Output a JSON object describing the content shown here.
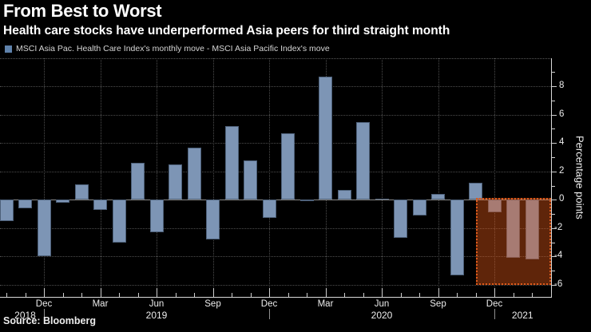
{
  "header": {
    "title": "From Best to Worst",
    "subtitle": "Health care stocks have underperformed Asia peers for third straight month"
  },
  "legend": {
    "swatch_color": "#5f82ab",
    "label": "MSCI Asia Pac. Health Care Index's monthly move - MSCI Asia Pacific Index's move"
  },
  "footer": {
    "source": "Source: Bloomberg"
  },
  "chart_data": {
    "type": "bar",
    "title": "From Best to Worst",
    "ylabel": "Percentage points",
    "ylim": [
      -6.84,
      9.97
    ],
    "y_ticks": [
      8,
      6,
      4,
      2,
      0,
      -2,
      -4,
      -6
    ],
    "y_minor_ticks": [
      9,
      7,
      5,
      3,
      1,
      -1,
      -3,
      -5
    ],
    "grid": true,
    "bar_color": "#7d95b5",
    "x": [
      "Oct 2018",
      "Nov 2018",
      "Dec 2018",
      "Jan 2019",
      "Feb 2019",
      "Mar 2019",
      "Apr 2019",
      "May 2019",
      "Jun 2019",
      "Jul 2019",
      "Aug 2019",
      "Sep 2019",
      "Oct 2019",
      "Nov 2019",
      "Dec 2019",
      "Jan 2020",
      "Feb 2020",
      "Mar 2020",
      "Apr 2020",
      "May 2020",
      "Jun 2020",
      "Jul 2020",
      "Aug 2020",
      "Sep 2020",
      "Oct 2020",
      "Nov 2020",
      "Dec 2020",
      "Jan 2021",
      "Feb 2021"
    ],
    "values": [
      -1.5,
      -0.6,
      -4.0,
      -0.2,
      1.1,
      -0.7,
      -3.0,
      2.6,
      -2.3,
      2.5,
      3.7,
      -2.8,
      5.2,
      2.8,
      -1.3,
      4.7,
      -0.1,
      8.7,
      0.7,
      5.5,
      0.1,
      -2.7,
      -1.1,
      0.4,
      -5.3,
      1.2,
      -0.9,
      -4.1,
      -4.2
    ],
    "x_tick_labels": [
      {
        "label": "Dec",
        "month_index": 2
      },
      {
        "label": "Mar",
        "month_index": 5
      },
      {
        "label": "Jun",
        "month_index": 8
      },
      {
        "label": "Sep",
        "month_index": 11
      },
      {
        "label": "Dec",
        "month_index": 14
      },
      {
        "label": "Mar",
        "month_index": 17
      },
      {
        "label": "Jun",
        "month_index": 20
      },
      {
        "label": "Sep",
        "month_index": 23
      },
      {
        "label": "Dec",
        "month_index": 26
      }
    ],
    "year_labels": [
      {
        "label": "2018",
        "month_index": 1
      },
      {
        "label": "2019",
        "month_index": 8
      },
      {
        "label": "2020",
        "month_index": 20
      },
      {
        "label": "2021",
        "month_index": 27.5
      }
    ],
    "year_divider_month_indexes": [
      2,
      14,
      26
    ],
    "highlight": {
      "months": [
        "Dec 2020",
        "Jan 2021",
        "Feb 2021"
      ],
      "start_month_index": 25,
      "y_top": 0.15,
      "y_bottom": -6.0,
      "fill": "rgba(226,88,24,0.42)",
      "border_color": "#dd5a1b"
    }
  }
}
